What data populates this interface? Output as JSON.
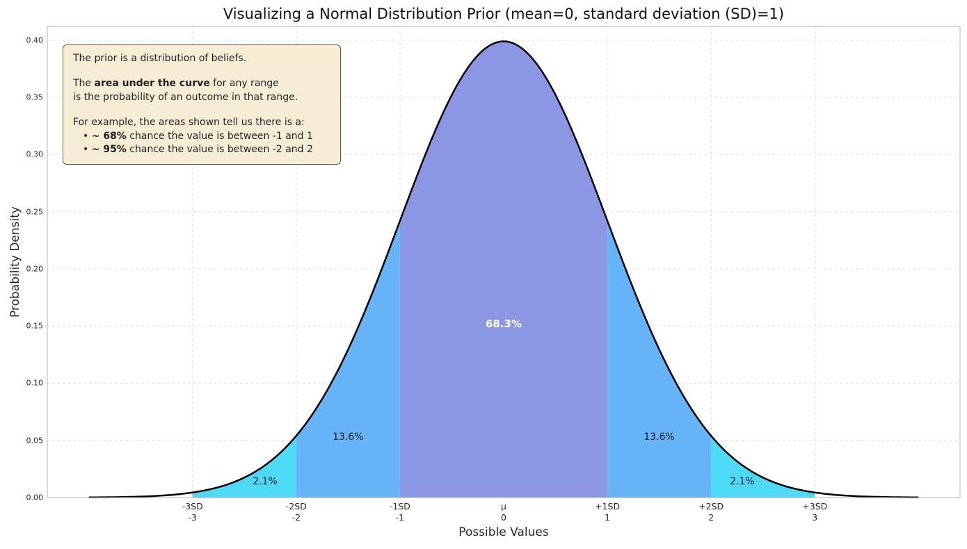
{
  "title": "Visualizing a Normal Distribution Prior (mean=0, standard deviation (SD)=1)",
  "annotation": {
    "line1": "The prior is a distribution of beliefs.",
    "line2_pre": "The ",
    "line2_bold": "area under the curve",
    "line2_post": " for any range",
    "line3": "is the probability of an outcome in that range.",
    "line4": "For example, the areas shown tell us there is a:",
    "bullet": "•",
    "b1_bold": "~ 68%",
    "b1_text": " chance the value is between -1 and 1",
    "b2_bold": "~ 95%",
    "b2_text": " chance the value is between -2 and 2"
  },
  "chart_data": {
    "type": "area",
    "title": "Visualizing a Normal Distribution Prior (mean=0, standard deviation (SD)=1)",
    "xlabel": "Possible Values",
    "ylabel": "Probability Density",
    "xlim": [
      -4.4,
      4.4
    ],
    "ylim": [
      0,
      0.412
    ],
    "curve_range": [
      -4,
      4
    ],
    "grid_on": true,
    "grid_color": "#d6d6d6",
    "grid_dash": "3,4.5",
    "frame_color": "#b6b6b6",
    "distribution": {
      "name": "normal",
      "mean": 0,
      "sd": 1,
      "peak_density": 0.3989
    },
    "curve": {
      "color": "#000000",
      "width": 2.5
    },
    "yticks": [
      0,
      0.05,
      0.1,
      0.15,
      0.2,
      0.25,
      0.3,
      0.35,
      0.4
    ],
    "ytick_labels": [
      "0.00",
      "0.05",
      "0.10",
      "0.15",
      "0.20",
      "0.25",
      "0.30",
      "0.35",
      "0.40"
    ],
    "xticks": [
      {
        "value": -3,
        "sd_label": "-3SD",
        "num_label": "-3"
      },
      {
        "value": -2,
        "sd_label": "-2SD",
        "num_label": "-2"
      },
      {
        "value": -1,
        "sd_label": "-1SD",
        "num_label": "-1"
      },
      {
        "value": 0,
        "sd_label": "μ",
        "num_label": "0"
      },
      {
        "value": 1,
        "sd_label": "+1SD",
        "num_label": "1"
      },
      {
        "value": 2,
        "sd_label": "+2SD",
        "num_label": "2"
      },
      {
        "value": 3,
        "sd_label": "+3SD",
        "num_label": "3"
      }
    ],
    "regions": [
      {
        "from": -1,
        "to": 1,
        "fill": "#8b97e2",
        "label": "68.3%",
        "label_at": [
          0,
          0.152
        ],
        "label_color": "#ffffff",
        "label_bold": true,
        "label_size": 15
      },
      {
        "from": -2,
        "to": -1,
        "fill": "#66b3f7",
        "label": "13.6%",
        "label_at": [
          -1.5,
          0.0529
        ],
        "label_color": "#1a1a1a",
        "label_bold": false,
        "label_size": 14
      },
      {
        "from": 1,
        "to": 2,
        "fill": "#66b3f7",
        "label": "13.6%",
        "label_at": [
          1.5,
          0.0529
        ],
        "label_color": "#1a1a1a",
        "label_bold": false,
        "label_size": 14
      },
      {
        "from": -3,
        "to": -2,
        "fill": "#4ed9f7",
        "label": "2.1%",
        "label_at": [
          -2.3,
          0.014
        ],
        "label_color": "#1a1a1a",
        "label_bold": false,
        "label_size": 14
      },
      {
        "from": 2,
        "to": 3,
        "fill": "#4ed9f7",
        "label": "2.1%",
        "label_at": [
          2.3,
          0.014
        ],
        "label_color": "#1a1a1a",
        "label_bold": false,
        "label_size": 14
      }
    ]
  }
}
